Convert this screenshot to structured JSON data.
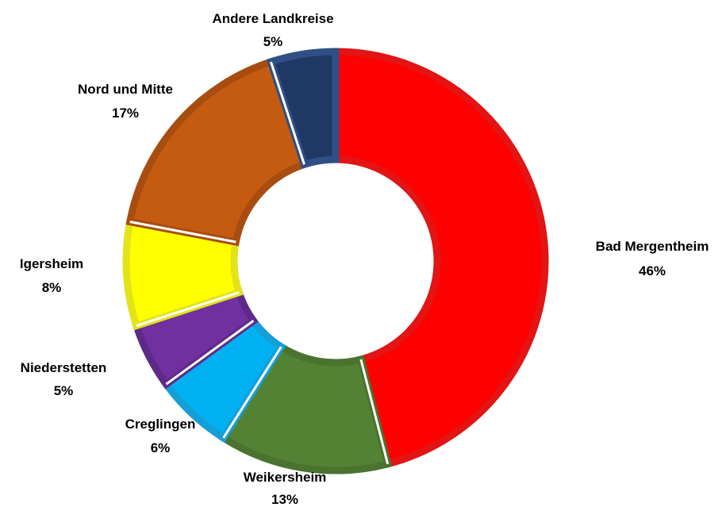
{
  "chart_data": {
    "type": "pie",
    "variant": "donut",
    "title": "",
    "legend": "none",
    "slices": [
      {
        "name": "Bad Mergentheim",
        "value": 46,
        "label": "46%",
        "color": "#ff0000",
        "border": "#e21414"
      },
      {
        "name": "Weikersheim",
        "value": 13,
        "label": "13%",
        "color": "#548235",
        "border": "#4a7330"
      },
      {
        "name": "Creglingen",
        "value": 6,
        "label": "6%",
        "color": "#00b0f0",
        "border": "#149fd6"
      },
      {
        "name": "Niederstetten",
        "value": 5,
        "label": "5%",
        "color": "#7030a0",
        "border": "#5e2a88"
      },
      {
        "name": "Igersheim",
        "value": 8,
        "label": "8%",
        "color": "#ffff00",
        "border": "#e3e31a"
      },
      {
        "name": "Nord und Mitte",
        "value": 17,
        "label": "17%",
        "color": "#c55a11",
        "border": "#a84d10"
      },
      {
        "name": "Andere Landkreise",
        "value": 5,
        "label": "5%",
        "color": "#203864",
        "border": "#2f4f85"
      }
    ]
  }
}
